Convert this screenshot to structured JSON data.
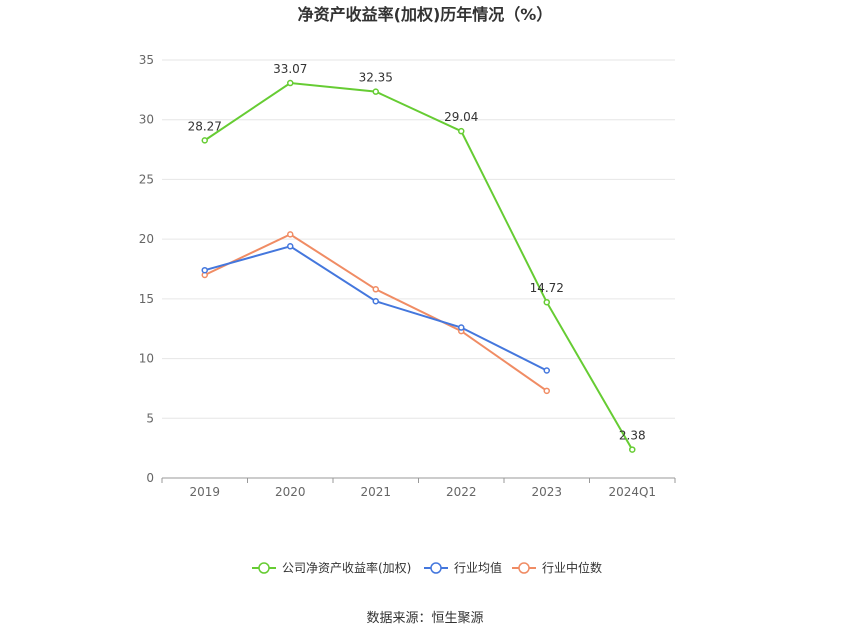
{
  "chart_data": {
    "type": "line",
    "title": "净资产收益率(加权)历年情况（%）",
    "categories": [
      "2019",
      "2020",
      "2021",
      "2022",
      "2023",
      "2024Q1"
    ],
    "ylim": [
      0,
      35
    ],
    "yticks": [
      0,
      5,
      10,
      15,
      20,
      25,
      30,
      35
    ],
    "grid": true,
    "legend_position": "bottom-center",
    "series": [
      {
        "name": "公司净资产收益率(加权)",
        "color": "#66cc33",
        "values": [
          28.27,
          33.07,
          32.35,
          29.04,
          14.72,
          2.38
        ],
        "labels": [
          "28.27",
          "33.07",
          "32.35",
          "29.04",
          "14.72",
          "2.38"
        ]
      },
      {
        "name": "行业均值",
        "color": "#4477dd",
        "values": [
          17.4,
          19.4,
          14.8,
          12.6,
          9.0,
          null
        ]
      },
      {
        "name": "行业中位数",
        "color": "#f08c64",
        "values": [
          17.0,
          20.4,
          15.8,
          12.3,
          7.3,
          null
        ]
      }
    ],
    "source": "数据来源：恒生聚源"
  }
}
